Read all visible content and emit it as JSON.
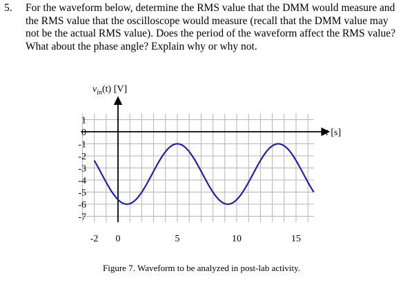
{
  "question": {
    "number": "5.",
    "text": "For the waveform below, determine the RMS value that the DMM would measure and the RMS value that the oscilloscope would measure (recall that the DMM value may not be the actual RMS value). Does the period of the waveform affect the RMS value? What about the phase angle? Explain why or why not."
  },
  "chart_data": {
    "type": "line",
    "ylabel": "v_in(t) [V]",
    "ylabel_parts": {
      "main": "v",
      "sub": "in",
      "rest": "(t) [V]"
    },
    "xlabel": "t [s]",
    "xlim": [
      -3,
      16.5
    ],
    "ylim": [
      -7.5,
      1.5
    ],
    "x_ticks": [
      -2,
      0,
      5,
      10,
      15
    ],
    "y_ticks": [
      1,
      0,
      -1,
      -2,
      -3,
      -4,
      -5,
      -6,
      -7
    ],
    "grid": true,
    "waveform": {
      "kind": "sinusoid",
      "offset": -3.5,
      "amplitude": 2.5,
      "period": 8.5,
      "peak_time": 5,
      "x_start": -2,
      "x_end": 16.5,
      "color": "#1f1fb4"
    }
  },
  "caption": "Figure 7. Waveform to be analyzed in post-lab activity."
}
